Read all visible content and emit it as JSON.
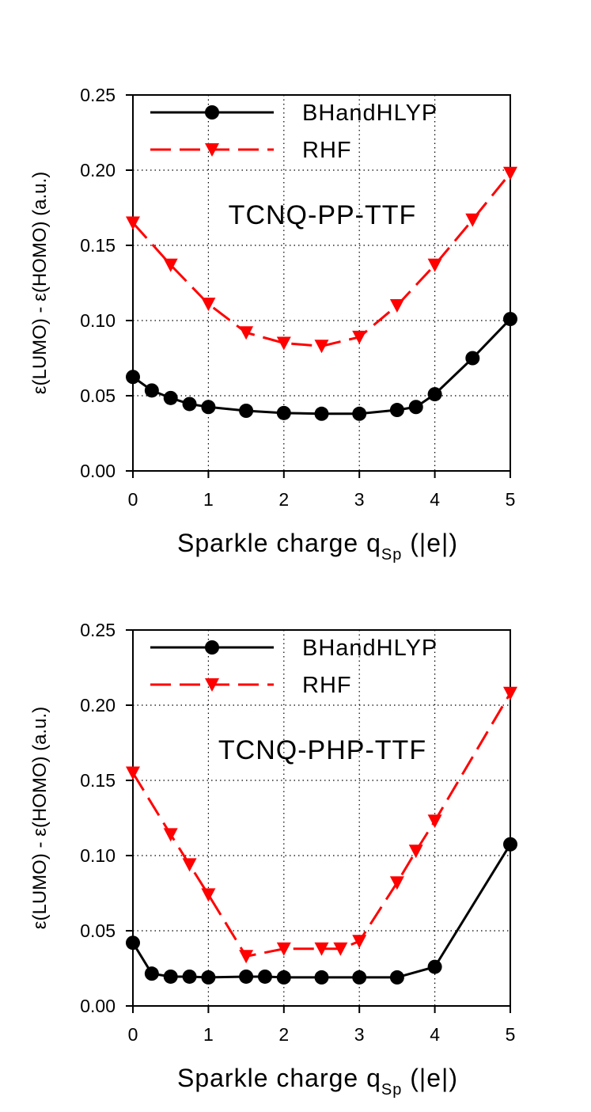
{
  "colors": {
    "bhandhlyp": "#000000",
    "rhf": "#ff0000",
    "grid": "#000000"
  },
  "chart_data": [
    {
      "type": "line",
      "annotation": "TCNQ-PP-TTF",
      "xlabel": "Sparkle charge q",
      "xlabel_sub": "Sp",
      "xlabel_tail": " (|e|)",
      "ylabel": "ε(LUMO) - ε(HOMO) (a.u.)",
      "xlim": [
        0,
        5
      ],
      "ylim": [
        0,
        0.25
      ],
      "xticks": [
        "0",
        "1",
        "2",
        "3",
        "4",
        "5"
      ],
      "yticks": [
        "0.00",
        "0.05",
        "0.10",
        "0.15",
        "0.20",
        "0.25"
      ],
      "grid": true,
      "legend_position": "top",
      "series": [
        {
          "name": "BHandHLYP",
          "style": "solid",
          "marker": "circle",
          "x": [
            0,
            0.25,
            0.5,
            0.75,
            1,
            1.5,
            2,
            2.5,
            3,
            3.5,
            3.75,
            4,
            4.5,
            5
          ],
          "y": [
            0.0625,
            0.0535,
            0.0485,
            0.0445,
            0.0425,
            0.04,
            0.0385,
            0.038,
            0.038,
            0.0405,
            0.0425,
            0.051,
            0.075,
            0.101
          ]
        },
        {
          "name": "RHF",
          "style": "dashed",
          "marker": "triangle-down",
          "x": [
            0,
            0.5,
            1,
            1.5,
            2,
            2.5,
            3,
            3.5,
            4,
            4.5,
            5
          ],
          "y": [
            0.165,
            0.137,
            0.111,
            0.092,
            0.085,
            0.083,
            0.089,
            0.11,
            0.137,
            0.167,
            0.198
          ]
        }
      ]
    },
    {
      "type": "line",
      "annotation": "TCNQ-PHP-TTF",
      "xlabel": "Sparkle charge q",
      "xlabel_sub": "Sp",
      "xlabel_tail": " (|e|)",
      "ylabel": "ε(LUMO) - ε(HOMO) (a.u.)",
      "xlim": [
        0,
        5
      ],
      "ylim": [
        0,
        0.25
      ],
      "xticks": [
        "0",
        "1",
        "2",
        "3",
        "4",
        "5"
      ],
      "yticks": [
        "0.00",
        "0.05",
        "0.10",
        "0.15",
        "0.20",
        "0.25"
      ],
      "grid": true,
      "legend_position": "top",
      "series": [
        {
          "name": "BHandHLYP",
          "style": "solid",
          "marker": "circle",
          "x": [
            0,
            0.25,
            0.5,
            0.75,
            1,
            1.5,
            1.75,
            2,
            2.5,
            3,
            3.5,
            4,
            5
          ],
          "y": [
            0.042,
            0.0215,
            0.0195,
            0.0195,
            0.019,
            0.0195,
            0.0195,
            0.019,
            0.019,
            0.019,
            0.019,
            0.026,
            0.1075
          ]
        },
        {
          "name": "RHF",
          "style": "dashed",
          "marker": "triangle-down",
          "x": [
            0,
            0.5,
            0.75,
            1,
            1.5,
            2,
            2.5,
            2.75,
            3,
            3.5,
            3.75,
            4,
            5
          ],
          "y": [
            0.155,
            0.114,
            0.094,
            0.074,
            0.033,
            0.038,
            0.038,
            0.038,
            0.043,
            0.082,
            0.103,
            0.123,
            0.208
          ]
        }
      ]
    }
  ]
}
